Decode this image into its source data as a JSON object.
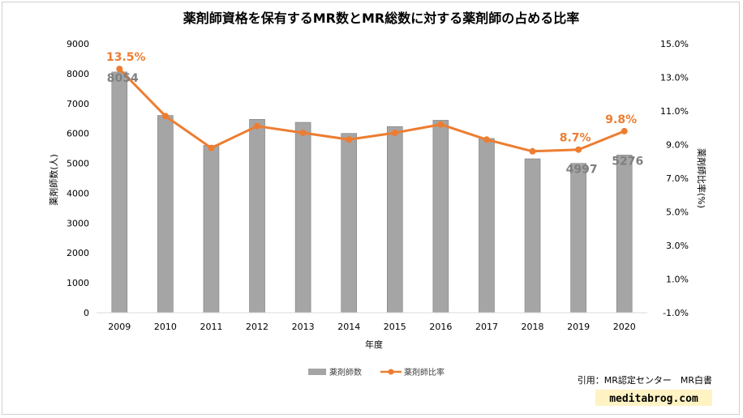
{
  "chart_data": {
    "type": "bar+line",
    "title": "薬剤師資格を保有するMR数とMR総数に対する薬剤師の占める比率",
    "xlabel": "年度",
    "ylabel_left": "薬剤師数(人)",
    "ylabel_right": "薬剤師比率(%)",
    "categories": [
      "2009",
      "2010",
      "2011",
      "2012",
      "2013",
      "2014",
      "2015",
      "2016",
      "2017",
      "2018",
      "2019",
      "2020"
    ],
    "series": [
      {
        "name": "薬剤師数",
        "kind": "bar",
        "axis": "left",
        "color": "#a5a5a5",
        "values": [
          8054,
          6600,
          5600,
          6470,
          6370,
          6000,
          6230,
          6440,
          5830,
          5150,
          4997,
          5276
        ]
      },
      {
        "name": "薬剤師比率",
        "kind": "line",
        "axis": "right",
        "color": "#ed7d31",
        "values": [
          13.5,
          10.7,
          8.8,
          10.1,
          9.7,
          9.3,
          9.7,
          10.2,
          9.3,
          8.6,
          8.7,
          9.8
        ]
      }
    ],
    "ylim_left": [
      0,
      9000
    ],
    "yticks_left": [
      "0",
      "1000",
      "2000",
      "3000",
      "4000",
      "5000",
      "6000",
      "7000",
      "8000",
      "9000"
    ],
    "ylim_right": [
      -1.0,
      15.0
    ],
    "yticks_right": [
      "-1.0%",
      "1.0%",
      "3.0%",
      "5.0%",
      "7.0%",
      "9.0%",
      "11.0%",
      "13.0%",
      "15.0%"
    ],
    "bar_labels": [
      {
        "index": 0,
        "text": "8054"
      },
      {
        "index": 10,
        "text": "4997"
      },
      {
        "index": 11,
        "text": "5276"
      }
    ],
    "line_labels": [
      {
        "index": 0,
        "text": "13.5%"
      },
      {
        "index": 10,
        "text": "8.7%"
      },
      {
        "index": 11,
        "text": "9.8%"
      }
    ],
    "legend_position": "bottom",
    "grid": false
  },
  "source": "引用：MR認定センター　MR白書",
  "watermark": "meditabrog.com"
}
